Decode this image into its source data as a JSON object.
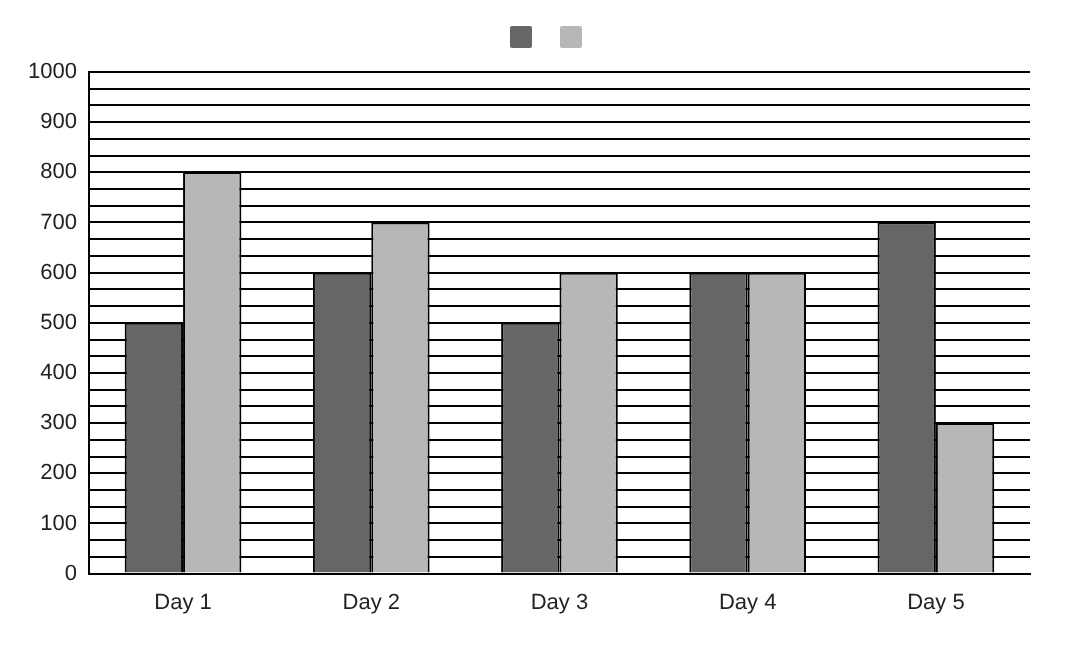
{
  "chart_data": {
    "type": "bar",
    "categories": [
      "Day 1",
      "Day 2",
      "Day 3",
      "Day 4",
      "Day 5"
    ],
    "series": [
      {
        "color": "#666666",
        "values": [
          500,
          600,
          500,
          600,
          700
        ]
      },
      {
        "color": "#b7b7b7",
        "values": [
          800,
          700,
          600,
          600,
          300
        ]
      }
    ],
    "ylim": [
      0,
      1000
    ],
    "yticks": [
      0,
      {
        "value": 33.33,
        "label": null
      },
      {
        "value": 66.67,
        "label": null
      },
      100,
      {
        "value": 133.33,
        "label": null
      },
      {
        "value": 166.67,
        "label": null
      },
      200,
      {
        "value": 233.33,
        "label": null
      },
      {
        "value": 266.67,
        "label": null
      },
      300,
      {
        "value": 333.33,
        "label": null
      },
      {
        "value": 366.67,
        "label": null
      },
      400,
      {
        "value": 433.33,
        "label": null
      },
      {
        "value": 466.67,
        "label": null
      },
      500,
      {
        "value": 533.33,
        "label": null
      },
      {
        "value": 566.67,
        "label": null
      },
      600,
      {
        "value": 633.33,
        "label": null
      },
      {
        "value": 666.67,
        "label": null
      },
      700,
      {
        "value": 733.33,
        "label": null
      },
      {
        "value": 766.67,
        "label": null
      },
      800,
      {
        "value": 833.33,
        "label": null
      },
      {
        "value": 866.67,
        "label": null
      },
      900,
      {
        "value": 933.33,
        "label": null
      },
      {
        "value": 966.67,
        "label": null
      },
      1000
    ],
    "grid": "y"
  }
}
